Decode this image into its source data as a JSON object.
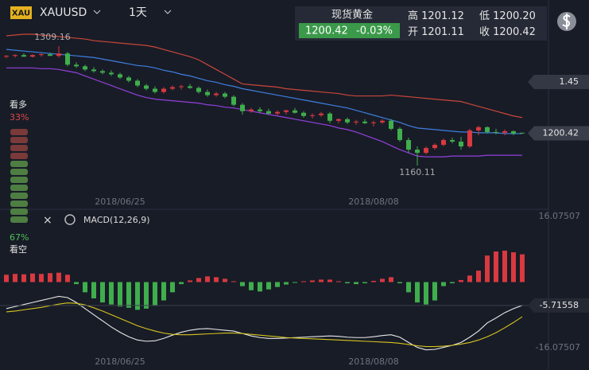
{
  "header": {
    "badge": "XAU",
    "symbol": "XAUUSD",
    "period": "1天"
  },
  "quote": {
    "name": "现货黄金",
    "last": 1200.42,
    "change": {
      "value": -0.03,
      "label": "-0.03%"
    },
    "high_label": "高",
    "high": 1201.12,
    "low_label": "低",
    "low": {
      "value": 1200.2,
      "label": "1200.20"
    },
    "open_label": "开",
    "open": 1201.11,
    "close_label": "收",
    "close": 1200.42
  },
  "sentiment": {
    "bull_label": "看多",
    "bull": {
      "value": 33,
      "label": "33%"
    },
    "bear": {
      "value": 67,
      "label": "67%"
    },
    "bear_label": "看空"
  },
  "chart_data": [
    {
      "type": "candlestick",
      "axis_marker": 1.45,
      "up_color": "#d9393f",
      "down_color": "#3fae4c",
      "ylim": [
        1106.6,
        1366.7
      ],
      "categories": [
        null,
        null,
        null,
        null,
        null,
        null,
        null,
        null,
        null,
        null,
        null,
        null,
        null,
        "2018/06/25",
        null,
        null,
        null,
        null,
        null,
        null,
        null,
        null,
        null,
        null,
        null,
        null,
        null,
        null,
        null,
        null,
        null,
        null,
        null,
        null,
        null,
        null,
        null,
        null,
        null,
        null,
        null,
        null,
        "2018/08/08",
        null,
        null,
        null,
        null,
        null,
        null,
        null,
        null,
        null,
        null,
        null,
        null,
        null,
        null,
        null,
        null,
        null
      ],
      "candles": [
        [
          1296,
          1298,
          1294,
          1297
        ],
        [
          1297,
          1299,
          1295,
          1298
        ],
        [
          1298,
          1300,
          1296,
          1296
        ],
        [
          1296,
          1299,
          1295,
          1298
        ],
        [
          1298,
          1300,
          1296,
          1299
        ],
        [
          1299,
          1301,
          1297,
          1297
        ],
        [
          1297,
          1309.16,
          1295,
          1300
        ],
        [
          1300,
          1302,
          1284,
          1286
        ],
        [
          1286,
          1289,
          1282,
          1284
        ],
        [
          1284,
          1286,
          1278,
          1280
        ],
        [
          1280,
          1283,
          1276,
          1278
        ],
        [
          1278,
          1280,
          1274,
          1276
        ],
        [
          1276,
          1279,
          1272,
          1274
        ],
        [
          1274,
          1276,
          1268,
          1270
        ],
        [
          1270,
          1272,
          1264,
          1266
        ],
        [
          1266,
          1268,
          1258,
          1260
        ],
        [
          1260,
          1262,
          1254,
          1256
        ],
        [
          1256,
          1259,
          1250,
          1252
        ],
        [
          1252,
          1258,
          1250,
          1256
        ],
        [
          1256,
          1260,
          1254,
          1258
        ],
        [
          1258,
          1261,
          1255,
          1259
        ],
        [
          1259,
          1262,
          1256,
          1257
        ],
        [
          1257,
          1259,
          1250,
          1252
        ],
        [
          1252,
          1255,
          1246,
          1248
        ],
        [
          1248,
          1252,
          1246,
          1250
        ],
        [
          1250,
          1252,
          1244,
          1246
        ],
        [
          1246,
          1248,
          1234,
          1236
        ],
        [
          1236,
          1238,
          1224,
          1228
        ],
        [
          1228,
          1232,
          1226,
          1230
        ],
        [
          1230,
          1233,
          1226,
          1228
        ],
        [
          1228,
          1231,
          1224,
          1225
        ],
        [
          1225,
          1229,
          1223,
          1227
        ],
        [
          1227,
          1230,
          1224,
          1229
        ],
        [
          1229,
          1232,
          1225,
          1226
        ],
        [
          1226,
          1228,
          1220,
          1222
        ],
        [
          1222,
          1225,
          1219,
          1223
        ],
        [
          1223,
          1227,
          1221,
          1225
        ],
        [
          1225,
          1227,
          1213,
          1216
        ],
        [
          1216,
          1219,
          1213,
          1218
        ],
        [
          1218,
          1220,
          1212,
          1214
        ],
        [
          1214,
          1217,
          1211,
          1215
        ],
        [
          1215,
          1218,
          1212,
          1213
        ],
        [
          1213,
          1216,
          1209,
          1214
        ],
        [
          1214,
          1218,
          1212,
          1216
        ],
        [
          1216,
          1218,
          1204,
          1206
        ],
        [
          1206,
          1208,
          1190,
          1192
        ],
        [
          1192,
          1195,
          1176,
          1180
        ],
        [
          1180,
          1184,
          1160.11,
          1176
        ],
        [
          1176,
          1184,
          1174,
          1182
        ],
        [
          1182,
          1188,
          1180,
          1186
        ],
        [
          1186,
          1194,
          1184,
          1192
        ],
        [
          1192,
          1195,
          1188,
          1190
        ],
        [
          1190,
          1196,
          1180,
          1184
        ],
        [
          1184,
          1206,
          1182,
          1204
        ],
        [
          1204,
          1210,
          1198,
          1208
        ],
        [
          1208,
          1209,
          1200,
          1202
        ],
        [
          1202,
          1206,
          1199,
          1201
        ],
        [
          1201,
          1205,
          1198,
          1203
        ],
        [
          1203,
          1204,
          1198,
          1200
        ],
        [
          1201.11,
          1201.12,
          1200.2,
          1200.42
        ]
      ],
      "overlays": [
        {
          "color": "#c9473a",
          "values": [
            1322,
            1323,
            1324,
            1324,
            1323,
            1322,
            1321,
            1320,
            1319,
            1318,
            1316,
            1315,
            1314,
            1313,
            1312,
            1311,
            1310,
            1308,
            1305,
            1302,
            1299,
            1296,
            1292,
            1286,
            1280,
            1274,
            1268,
            1262,
            1261,
            1260,
            1259,
            1258,
            1256,
            1255,
            1254,
            1253,
            1252,
            1251,
            1250,
            1248,
            1247,
            1247,
            1247,
            1247,
            1248,
            1247,
            1246,
            1245,
            1244,
            1243,
            1242,
            1241,
            1240,
            1237,
            1234,
            1231,
            1228,
            1225,
            1222,
            1220
          ]
        },
        {
          "color": "#3e7fe0",
          "values": [
            1305,
            1304,
            1303,
            1302,
            1301,
            1300,
            1299,
            1298,
            1297,
            1296,
            1295,
            1293,
            1291,
            1289,
            1287,
            1285,
            1284,
            1282,
            1279,
            1277,
            1274,
            1272,
            1269,
            1266,
            1264,
            1261,
            1259,
            1256,
            1254,
            1252,
            1250,
            1248,
            1246,
            1244,
            1242,
            1240,
            1238,
            1236,
            1234,
            1232,
            1229,
            1226,
            1223,
            1220,
            1217,
            1214,
            1210,
            1207,
            1206,
            1205,
            1204,
            1203,
            1202,
            1202,
            1201,
            1201,
            1201,
            1200,
            1200,
            1200
          ]
        },
        {
          "color": "#9340dc",
          "values": [
            1282,
            1282,
            1282,
            1282,
            1281,
            1281,
            1280,
            1278,
            1276,
            1272,
            1268,
            1264,
            1260,
            1256,
            1252,
            1248,
            1245,
            1243,
            1242,
            1241,
            1240,
            1239,
            1238,
            1236,
            1235,
            1233,
            1232,
            1230,
            1228,
            1226,
            1224,
            1222,
            1220,
            1218,
            1216,
            1214,
            1212,
            1210,
            1207,
            1205,
            1202,
            1198,
            1194,
            1190,
            1185,
            1180,
            1176,
            1172,
            1171,
            1171,
            1171,
            1172,
            1172,
            1172,
            1172,
            1173,
            1173,
            1173,
            1173,
            1173
          ]
        }
      ]
    },
    {
      "type": "macd",
      "title": "MACD(12,26,9)",
      "up_color": "#d9393f",
      "down_color": "#3fae4c",
      "ylim": [
        -20.96,
        17.45
      ],
      "yticks": [
        16.07507,
        -16.07507
      ],
      "categories": [
        null,
        null,
        null,
        null,
        null,
        null,
        null,
        null,
        null,
        null,
        null,
        null,
        null,
        "2018/06/25",
        null,
        null,
        null,
        null,
        null,
        null,
        null,
        null,
        null,
        null,
        null,
        null,
        null,
        null,
        null,
        null,
        null,
        null,
        null,
        null,
        null,
        null,
        null,
        null,
        null,
        null,
        null,
        null,
        "2018/08/08",
        null,
        null,
        null,
        null,
        null,
        null,
        null,
        null,
        null,
        null,
        null,
        null,
        null,
        null,
        null,
        null,
        null
      ],
      "histogram": [
        1.8,
        2,
        1.9,
        2.1,
        2,
        2.2,
        2.3,
        1.8,
        -0.5,
        -2.5,
        -4,
        -5,
        -5.5,
        -6,
        -6.3,
        -6.8,
        -6.5,
        -5.8,
        -4.5,
        -2.5,
        -0.5,
        0.4,
        1,
        1.4,
        1.2,
        0.8,
        0.2,
        -1,
        -2,
        -2.3,
        -1.8,
        -1.2,
        -0.6,
        -0.2,
        0.2,
        0.4,
        0.6,
        0.6,
        0.2,
        -0.3,
        -0.5,
        -0.3,
        0.3,
        0.8,
        1.2,
        -0.3,
        -2.5,
        -5,
        -5.5,
        -4.5,
        -1,
        -0.3,
        0.5,
        1.6,
        2.8,
        6.5,
        7.5,
        7.7,
        7.3,
        6.8
      ],
      "series": [
        {
          "color": "#e8e8e8",
          "values": [
            -6.5,
            -6,
            -5.5,
            -5,
            -4.5,
            -4,
            -3.5,
            -3.8,
            -5,
            -6.5,
            -8,
            -9.5,
            -11,
            -12.3,
            -13.4,
            -14.2,
            -14.5,
            -14.4,
            -13.8,
            -13,
            -12.3,
            -11.8,
            -11.5,
            -11.4,
            -11.6,
            -11.8,
            -12,
            -12.6,
            -13.2,
            -13.6,
            -13.8,
            -13.8,
            -13.7,
            -13.6,
            -13.5,
            -13.4,
            -13.3,
            -13.2,
            -13.3,
            -13.5,
            -13.6,
            -13.6,
            -13.4,
            -13.1,
            -12.9,
            -13.5,
            -14.8,
            -16,
            -16.6,
            -16.5,
            -16,
            -15.5,
            -14.8,
            -13.5,
            -12,
            -10,
            -8.8,
            -7.5,
            -6.5,
            -5.71558
          ]
        },
        {
          "color": "#d8c41e",
          "values": [
            -7.3,
            -7.1,
            -6.8,
            -6.5,
            -6.2,
            -5.8,
            -5.4,
            -5.1,
            -5.2,
            -5.6,
            -6.3,
            -7.1,
            -8,
            -8.9,
            -9.8,
            -10.7,
            -11.4,
            -12,
            -12.5,
            -12.8,
            -12.9,
            -12.9,
            -12.8,
            -12.7,
            -12.6,
            -12.5,
            -12.5,
            -12.6,
            -12.8,
            -13,
            -13.2,
            -13.4,
            -13.6,
            -13.7,
            -13.8,
            -13.9,
            -14,
            -14.1,
            -14.2,
            -14.3,
            -14.4,
            -14.5,
            -14.6,
            -14.7,
            -14.8,
            -15,
            -15.3,
            -15.6,
            -15.8,
            -15.8,
            -15.7,
            -15.5,
            -15.2,
            -14.8,
            -14.2,
            -13.4,
            -12.4,
            -11.2,
            -9.9,
            -8.5
          ]
        }
      ]
    }
  ]
}
